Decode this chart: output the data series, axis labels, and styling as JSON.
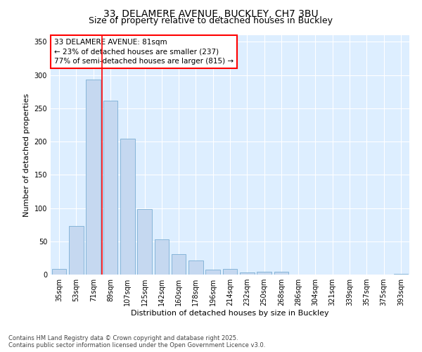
{
  "title_line1": "33, DELAMERE AVENUE, BUCKLEY, CH7 3BU",
  "title_line2": "Size of property relative to detached houses in Buckley",
  "xlabel": "Distribution of detached houses by size in Buckley",
  "ylabel": "Number of detached properties",
  "categories": [
    "35sqm",
    "53sqm",
    "71sqm",
    "89sqm",
    "107sqm",
    "125sqm",
    "142sqm",
    "160sqm",
    "178sqm",
    "196sqm",
    "214sqm",
    "232sqm",
    "250sqm",
    "268sqm",
    "286sqm",
    "304sqm",
    "321sqm",
    "339sqm",
    "357sqm",
    "375sqm",
    "393sqm"
  ],
  "values": [
    8,
    73,
    293,
    261,
    204,
    98,
    53,
    31,
    21,
    7,
    8,
    3,
    4,
    4,
    0,
    0,
    0,
    0,
    0,
    0,
    1
  ],
  "bar_color": "#c5d8f0",
  "bar_edgecolor": "#7aaed4",
  "plot_bg_color": "#ddeeff",
  "fig_bg_color": "#ffffff",
  "red_line_index": 2.5,
  "annotation_line1": "33 DELAMERE AVENUE: 81sqm",
  "annotation_line2": "← 23% of detached houses are smaller (237)",
  "annotation_line3": "77% of semi-detached houses are larger (815) →",
  "ylim": [
    0,
    360
  ],
  "yticks": [
    0,
    50,
    100,
    150,
    200,
    250,
    300,
    350
  ],
  "footer_line1": "Contains HM Land Registry data © Crown copyright and database right 2025.",
  "footer_line2": "Contains public sector information licensed under the Open Government Licence v3.0.",
  "title_fontsize": 10,
  "subtitle_fontsize": 9,
  "axis_label_fontsize": 8,
  "tick_fontsize": 7,
  "annotation_fontsize": 7.5,
  "footer_fontsize": 6
}
